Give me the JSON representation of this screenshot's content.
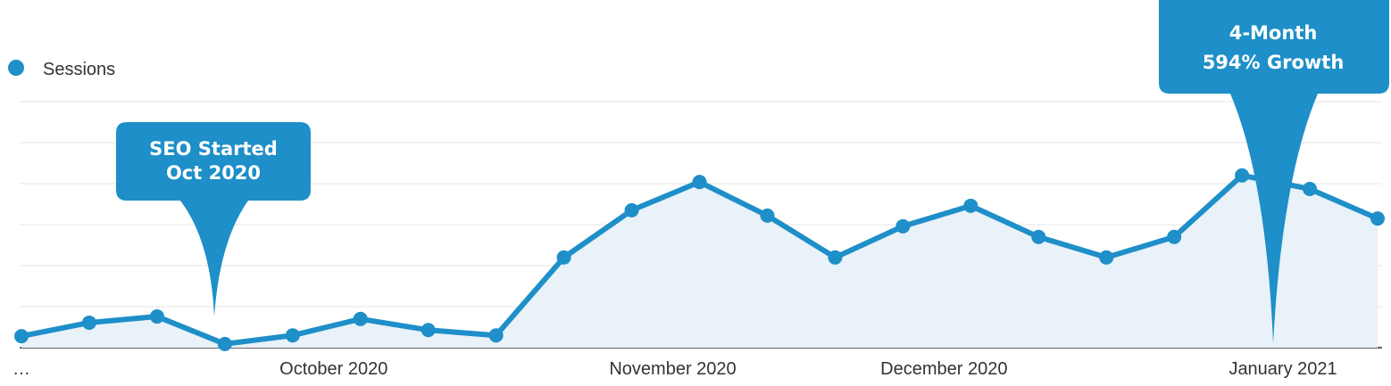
{
  "chart_data": {
    "type": "line",
    "legend": "Sessions",
    "categories": [
      "…",
      null,
      null,
      null,
      null,
      "October 2020",
      null,
      null,
      null,
      null,
      "November 2020",
      null,
      null,
      null,
      "December 2020",
      null,
      null,
      null,
      null,
      "January 2021",
      null
    ],
    "series": [
      {
        "name": "Sessions",
        "color": "#1e8fc8",
        "values": [
          0.28,
          0.61,
          0.76,
          0.09,
          0.3,
          0.7,
          0.43,
          0.3,
          2.2,
          3.35,
          4.04,
          3.22,
          2.2,
          2.96,
          3.46,
          2.7,
          2.2,
          2.7,
          4.2,
          3.87,
          3.15
        ]
      }
    ],
    "ylim": [
      0,
      6
    ],
    "yticks": [
      0,
      1,
      2,
      3,
      4,
      5,
      6
    ],
    "grid": true,
    "annotations": [
      {
        "lines": [
          "SEO Started",
          "Oct 2020"
        ]
      },
      {
        "lines": [
          "4-Month",
          "594% Growth"
        ]
      }
    ]
  }
}
